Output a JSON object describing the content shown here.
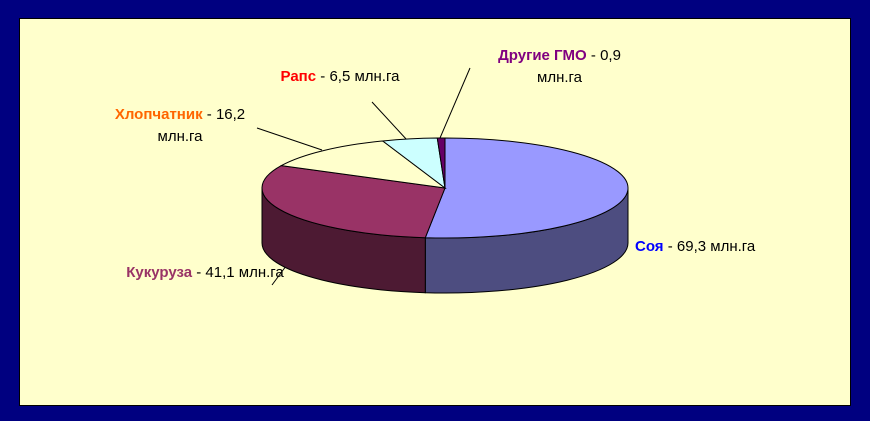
{
  "chart_data": {
    "type": "pie3d",
    "categories": [
      "Соя",
      "Кукуруза",
      "Хлопчатник",
      "Рапс",
      "Другие ГМО"
    ],
    "values": [
      69.3,
      41.1,
      16.2,
      6.5,
      0.9
    ],
    "value_labels": [
      "69,3 млн.га",
      "41,1 млн.га",
      "16,2 млн.га",
      "6,5 млн.га",
      "0,9 млн.га"
    ],
    "label_separator": "-",
    "colors": [
      "#9999ff",
      "#993366",
      "#ffffcc",
      "#ccffff",
      "#660066"
    ],
    "label_colors": [
      "#0000ff",
      "#993366",
      "#ff6600",
      "#ff0000",
      "#800080"
    ]
  }
}
